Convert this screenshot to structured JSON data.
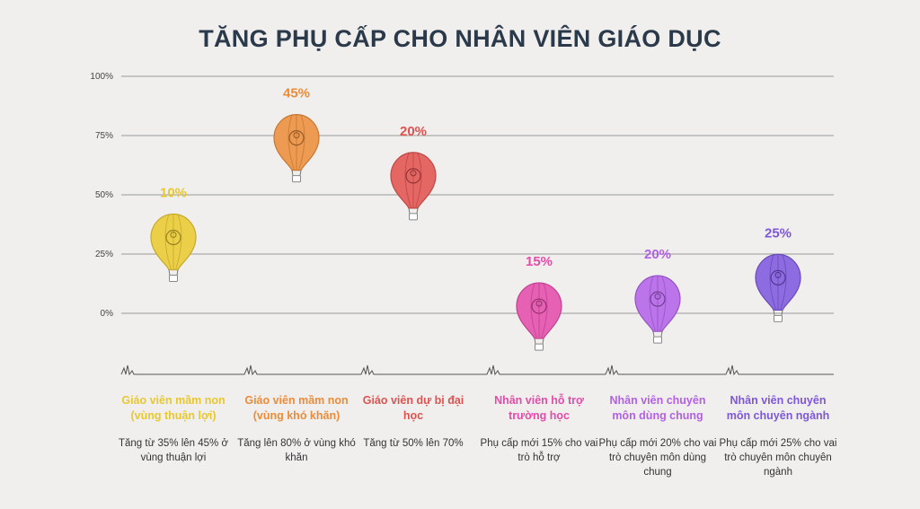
{
  "title": "TĂNG PHỤ CẤP CHO NHÂN VIÊN GIÁO DỤC",
  "chart_data": {
    "type": "scatter",
    "title": "TĂNG PHỤ CẤP CHO NHÂN VIÊN GIÁO DỤC",
    "y_ticks": [
      "100%",
      "75%",
      "50%",
      "25%",
      "0%"
    ],
    "ylim": [
      0,
      100
    ],
    "grid": true,
    "categories": [
      {
        "label": "Giáo viên mầm non (vùng thuận lợi)",
        "desc": "Tăng từ 35% lên 45% ở vùng thuận lợi",
        "value_label": "10%",
        "position": 32,
        "color": "#e8c830",
        "icon": "teacher-icon"
      },
      {
        "label": "Giáo viên mầm non (vùng khó khăn)",
        "desc": "Tăng lên 80% ở vùng khó khăn",
        "value_label": "45%",
        "position": 74,
        "color": "#eb8c3a",
        "icon": "children-icon"
      },
      {
        "label": "Giáo viên dự bị đại học",
        "desc": "Tăng từ 50% lên 70%",
        "value_label": "20%",
        "position": 58,
        "color": "#e0524f",
        "icon": "graduate-icon"
      },
      {
        "label": "Nhân viên hỗ trợ trường học",
        "desc": "Phụ cấp mới 15% cho vai trò hỗ trợ",
        "value_label": "15%",
        "position": 3,
        "color": "#e34ca9",
        "icon": "support-staff-icon"
      },
      {
        "label": "Nhân viên chuyên môn dùng chung",
        "desc": "Phụ cấp mới 20% cho vai trò chuyên môn dùng chung",
        "value_label": "20%",
        "position": 6,
        "color": "#b261e6",
        "icon": "shared-staff-icon"
      },
      {
        "label": "Nhân viên chuyên môn chuyên ngành",
        "desc": "Phụ cấp mới 25% cho vai trò chuyên môn chuyên ngành",
        "value_label": "25%",
        "position": 15,
        "color": "#7d57dc",
        "icon": "specialist-icon"
      }
    ]
  }
}
